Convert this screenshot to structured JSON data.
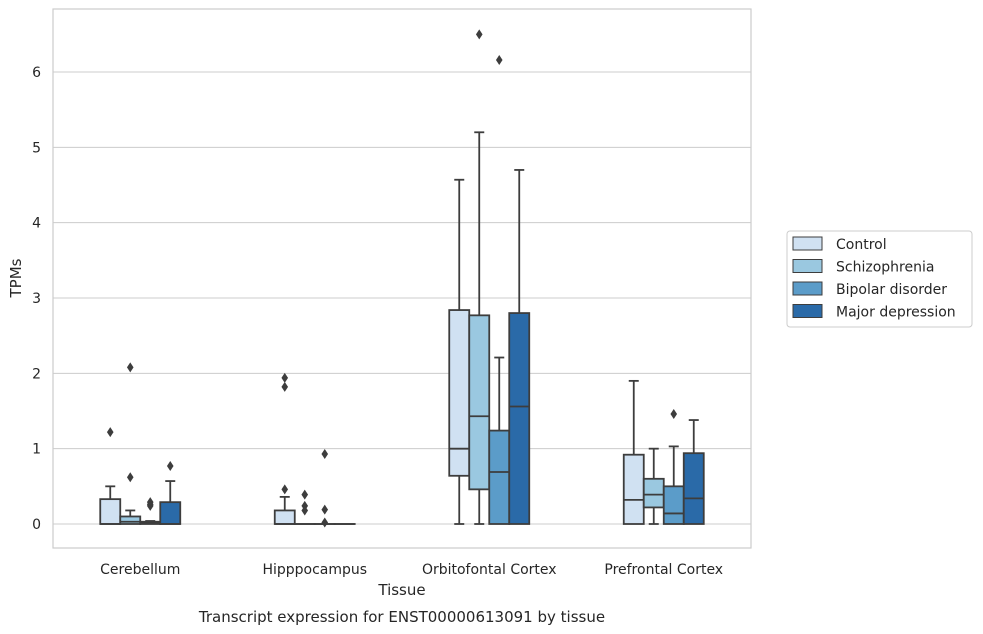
{
  "caption": "Transcript expression for ENST00000613091 by tissue",
  "chart_data": {
    "type": "box",
    "xlabel": "Tissue",
    "ylabel": "TPMs",
    "ylim": [
      -0.32,
      6.85
    ],
    "yticks": [
      0,
      1,
      2,
      3,
      4,
      5,
      6
    ],
    "grid": "horizontal",
    "legend_position": "right",
    "categories": [
      "Cerebellum",
      "Hipppocampus",
      "Orbitofontal Cortex",
      "Prefrontal Cortex"
    ],
    "series": [
      {
        "name": "Control",
        "color": "#d0e1f2",
        "boxes": [
          {
            "whisker_low": 0,
            "q1": 0,
            "median": 0,
            "q3": 0.33,
            "whisker_high": 0.5,
            "outliers": [
              1.22
            ]
          },
          {
            "whisker_low": 0,
            "q1": 0,
            "median": 0,
            "q3": 0.18,
            "whisker_high": 0.36,
            "outliers": [
              1.94,
              1.82,
              0.46
            ]
          },
          {
            "whisker_low": 0,
            "q1": 0.64,
            "median": 1.0,
            "q3": 2.84,
            "whisker_high": 4.57,
            "outliers": []
          },
          {
            "whisker_low": 0,
            "q1": 0,
            "median": 0.32,
            "q3": 0.92,
            "whisker_high": 1.9,
            "outliers": []
          }
        ]
      },
      {
        "name": "Schizophrenia",
        "color": "#9ac8e0",
        "boxes": [
          {
            "whisker_low": 0,
            "q1": 0,
            "median": 0.03,
            "q3": 0.1,
            "whisker_high": 0.18,
            "outliers": [
              2.08,
              0.62
            ]
          },
          {
            "whisker_low": 0,
            "q1": 0,
            "median": 0,
            "q3": 0,
            "whisker_high": 0,
            "outliers": [
              0.39,
              0.24,
              0.18
            ]
          },
          {
            "whisker_low": 0,
            "q1": 0.46,
            "median": 1.43,
            "q3": 2.77,
            "whisker_high": 5.2,
            "outliers": [
              6.5
            ]
          },
          {
            "whisker_low": 0,
            "q1": 0.22,
            "median": 0.39,
            "q3": 0.6,
            "whisker_high": 1.0,
            "outliers": []
          }
        ]
      },
      {
        "name": "Bipolar disorder",
        "color": "#5b9cc9",
        "boxes": [
          {
            "whisker_low": 0,
            "q1": 0,
            "median": 0.01,
            "q3": 0.03,
            "whisker_high": 0.04,
            "outliers": [
              0.29,
              0.26,
              0.24
            ]
          },
          {
            "whisker_low": 0,
            "q1": 0,
            "median": 0,
            "q3": 0,
            "whisker_high": 0,
            "outliers": [
              0.93,
              0.19,
              0.02
            ]
          },
          {
            "whisker_low": 0,
            "q1": 0,
            "median": 0.69,
            "q3": 1.24,
            "whisker_high": 2.21,
            "outliers": [
              6.16
            ]
          },
          {
            "whisker_low": 0,
            "q1": 0,
            "median": 0.14,
            "q3": 0.5,
            "whisker_high": 1.03,
            "outliers": [
              1.46
            ]
          }
        ]
      },
      {
        "name": "Major depression",
        "color": "#2a6aa8",
        "boxes": [
          {
            "whisker_low": 0,
            "q1": 0,
            "median": 0,
            "q3": 0.29,
            "whisker_high": 0.57,
            "outliers": [
              0.77
            ]
          },
          {
            "whisker_low": 0,
            "q1": 0,
            "median": 0,
            "q3": 0,
            "whisker_high": 0,
            "outliers": []
          },
          {
            "whisker_low": 0,
            "q1": 0,
            "median": 1.56,
            "q3": 2.8,
            "whisker_high": 4.7,
            "outliers": []
          },
          {
            "whisker_low": 0,
            "q1": 0,
            "median": 0.34,
            "q3": 0.94,
            "whisker_high": 1.38,
            "outliers": []
          }
        ]
      }
    ]
  }
}
